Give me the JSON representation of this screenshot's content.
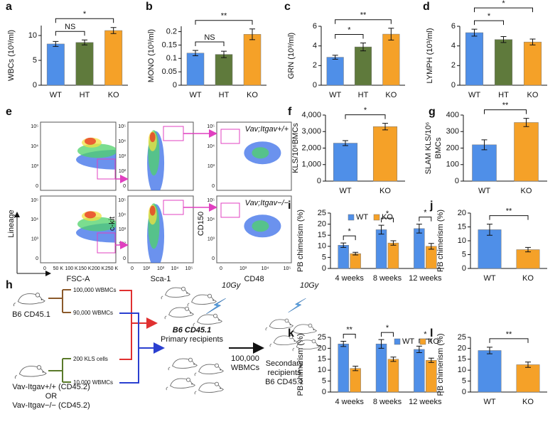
{
  "chart_data": [
    {
      "type": "bar",
      "panel": "a",
      "ylabel": "WBCs (10³/ml)",
      "categories": [
        "WT",
        "HT",
        "KO"
      ],
      "values": [
        8.3,
        8.6,
        11
      ],
      "errors": [
        0.5,
        0.5,
        0.6
      ],
      "colors": [
        "#4f8fe8",
        "#5f7a3c",
        "#f5a128"
      ],
      "ylim": [
        0,
        12
      ],
      "yticks": [
        0,
        5,
        10
      ],
      "brackets": [
        {
          "label": "NS",
          "between": [
            "WT",
            "HT"
          ]
        },
        {
          "label": "*",
          "between": [
            "WT",
            "KO"
          ]
        }
      ]
    },
    {
      "type": "bar",
      "panel": "b",
      "ylabel": "MONO (10³/ml)",
      "categories": [
        "WT",
        "HT",
        "KO"
      ],
      "values": [
        0.12,
        0.115,
        0.19
      ],
      "errors": [
        0.01,
        0.012,
        0.02
      ],
      "colors": [
        "#4f8fe8",
        "#5f7a3c",
        "#f5a128"
      ],
      "ylim": [
        0,
        0.22
      ],
      "yticks": [
        0,
        0.05,
        0.1,
        0.15,
        0.2
      ],
      "brackets": [
        {
          "label": "NS",
          "between": [
            "WT",
            "HT"
          ]
        },
        {
          "label": "**",
          "between": [
            "WT",
            "KO"
          ]
        }
      ]
    },
    {
      "type": "bar",
      "panel": "c",
      "ylabel": "GRN (10³/ml)",
      "categories": [
        "WT",
        "HT",
        "KO"
      ],
      "values": [
        2.85,
        3.9,
        5.2
      ],
      "errors": [
        0.2,
        0.4,
        0.6
      ],
      "colors": [
        "#4f8fe8",
        "#5f7a3c",
        "#f5a128"
      ],
      "ylim": [
        0,
        6
      ],
      "yticks": [
        0,
        2,
        4,
        6
      ],
      "brackets": [
        {
          "label": "*",
          "between": [
            "WT",
            "HT"
          ]
        },
        {
          "label": "**",
          "between": [
            "WT",
            "KO"
          ]
        }
      ]
    },
    {
      "type": "bar",
      "panel": "d",
      "ylabel": "LYMPH (10³/ml)",
      "categories": [
        "WT",
        "HT",
        "KO"
      ],
      "values": [
        5.35,
        4.65,
        4.4
      ],
      "errors": [
        0.35,
        0.3,
        0.3
      ],
      "colors": [
        "#4f8fe8",
        "#5f7a3c",
        "#f5a128"
      ],
      "ylim": [
        0,
        6
      ],
      "yticks": [
        0,
        2,
        4,
        6
      ],
      "brackets": [
        {
          "label": "*",
          "between": [
            "WT",
            "HT"
          ]
        },
        {
          "label": "*",
          "between": [
            "WT",
            "KO"
          ]
        }
      ]
    },
    {
      "type": "bar",
      "panel": "f",
      "ylabel": "KLS/10⁶BMCs",
      "categories": [
        "WT",
        "KO"
      ],
      "values": [
        2300,
        3300
      ],
      "errors": [
        150,
        200
      ],
      "colors": [
        "#4f8fe8",
        "#f5a128"
      ],
      "ylim": [
        0,
        4000
      ],
      "yticks": [
        0,
        {
          "value": 1000,
          "label": "1,000"
        },
        {
          "value": 2000,
          "label": "2,000"
        },
        {
          "value": 3000,
          "label": "3,000"
        },
        {
          "value": 4000,
          "label": "4,000"
        }
      ],
      "brackets": [
        {
          "label": "*",
          "between": [
            "WT",
            "KO"
          ]
        }
      ]
    },
    {
      "type": "bar",
      "panel": "g",
      "ylabel": [
        "SLAM KLS/10⁶",
        "BMCs"
      ],
      "categories": [
        "WT",
        "KO"
      ],
      "values": [
        220,
        355
      ],
      "errors": [
        30,
        25
      ],
      "colors": [
        "#4f8fe8",
        "#f5a128"
      ],
      "ylim": [
        0,
        400
      ],
      "yticks": [
        0,
        100,
        200,
        300,
        400
      ],
      "brackets": [
        {
          "label": "**",
          "between": [
            "WT",
            "KO"
          ]
        }
      ]
    },
    {
      "type": "grouped-bar",
      "panel": "i",
      "ylabel": "PB chimerism (%)",
      "categories": [
        "4 weeks",
        "8 weeks",
        "12 weeks"
      ],
      "series": [
        {
          "name": "WT",
          "color": "#4f8fe8",
          "values": [
            10.5,
            17.5,
            18
          ],
          "errors": [
            1,
            2,
            2
          ]
        },
        {
          "name": "KO",
          "color": "#f5a128",
          "values": [
            6.7,
            11.5,
            10
          ],
          "errors": [
            0.6,
            1,
            1.3
          ]
        }
      ],
      "legend": "top-left",
      "ylim": [
        0,
        25
      ],
      "yticks": [
        0,
        5,
        10,
        15,
        20,
        25
      ],
      "brackets": [
        {
          "label": "*",
          "category": "4 weeks"
        },
        {
          "label": "*",
          "category": "8 weeks"
        },
        {
          "label": "*",
          "category": "12 weeks"
        }
      ]
    },
    {
      "type": "bar",
      "panel": "j",
      "ylabel": "PB chimerism (%)",
      "categories": [
        "WT",
        "KO"
      ],
      "values": [
        14,
        6.8
      ],
      "errors": [
        2,
        0.8
      ],
      "colors": [
        "#4f8fe8",
        "#f5a128"
      ],
      "ylim": [
        0,
        20
      ],
      "yticks": [
        0,
        5,
        10,
        15,
        20
      ],
      "brackets": [
        {
          "label": "**",
          "between": [
            "WT",
            "KO"
          ]
        }
      ]
    },
    {
      "type": "grouped-bar",
      "panel": "k",
      "ylabel": "PB chimerism (%)",
      "categories": [
        "4 weeks",
        "8 weeks",
        "12 weeks"
      ],
      "series": [
        {
          "name": "WT",
          "color": "#4f8fe8",
          "values": [
            22,
            22,
            19.5
          ],
          "errors": [
            1.2,
            2,
            1.5
          ]
        },
        {
          "name": "KO",
          "color": "#f5a128",
          "values": [
            10.8,
            15,
            14.5
          ],
          "errors": [
            1,
            1,
            1
          ]
        }
      ],
      "legend": "top-right",
      "ylim": [
        0,
        25
      ],
      "yticks": [
        0,
        5,
        10,
        15,
        20,
        25
      ],
      "brackets": [
        {
          "label": "**",
          "category": "4 weeks"
        },
        {
          "label": "*",
          "category": "8 weeks"
        },
        {
          "label": "*",
          "category": "12 weeks"
        }
      ]
    },
    {
      "type": "bar",
      "panel": "l",
      "ylabel": "PB chimerism (%)",
      "categories": [
        "WT",
        "KO"
      ],
      "values": [
        19,
        12.5
      ],
      "errors": [
        1.5,
        1.2
      ],
      "colors": [
        "#4f8fe8",
        "#f5a128"
      ],
      "ylim": [
        0,
        25
      ],
      "yticks": [
        0,
        5,
        10,
        15,
        20,
        25
      ],
      "brackets": [
        {
          "label": "**",
          "between": [
            "WT",
            "KO"
          ]
        }
      ]
    }
  ],
  "flow": {
    "panel": "e",
    "plots": [
      {
        "xlabel": "FSC-A",
        "ylabel": "Lineage",
        "xticks": [
          "0",
          "50 K",
          "100 K",
          "150 K",
          "200 K",
          "250 K"
        ],
        "yticks": [
          "10⁵",
          "10⁴",
          "10³",
          "0"
        ]
      },
      {
        "xlabel": "Sca-1",
        "ylabel": "c-kit",
        "xticks": [
          "0",
          "10²",
          "10³",
          "10⁴",
          "10⁵"
        ],
        "yticks": [
          "10⁵",
          "10⁴",
          "10³",
          "10²",
          "0"
        ]
      },
      {
        "xlabel": "CD48",
        "ylabel": "CD150",
        "xticks": [
          "0",
          "10³",
          "10⁴",
          "10⁵"
        ],
        "yticks": [
          "10⁵",
          "10⁴",
          "10³",
          "0"
        ]
      }
    ],
    "genotypes": [
      "Vav;Itgav+/+",
      "Vav;Itgav−/−"
    ]
  },
  "diagram": {
    "panel": "h",
    "donor_a": "B6 CD45.1",
    "dose_1": "100,000 WBMCs",
    "dose_2": "90,000 WBMCs",
    "dose_3": "200 KLS cells",
    "dose_4": "10,000 WBMCs",
    "donor_b": [
      "Vav-Itgav+/+ (CD45.2)",
      "OR",
      "Vav-Itgav−/− (CD45.2)"
    ],
    "primary": [
      "B6 CD45.1",
      "Primary recipients"
    ],
    "transfer": [
      "100,000",
      "WBMCs"
    ],
    "irradiation": "10Gy",
    "secondary": [
      "Secondary",
      "recipients",
      "B6 CD45.1"
    ]
  }
}
